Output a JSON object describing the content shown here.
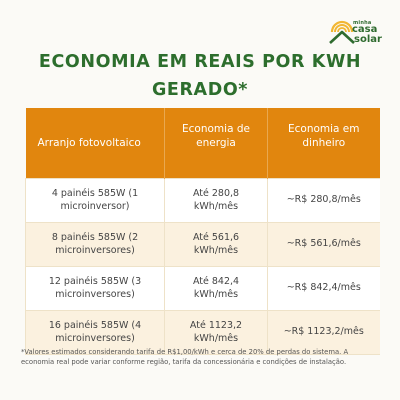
{
  "logo": {
    "line1": "minha",
    "line2": "casa",
    "line3": "solar",
    "icon": "sun-house-icon",
    "color_green": "#2f6b2f",
    "color_orange": "#e1860e"
  },
  "title": {
    "line1": "ECONOMIA EM REAIS POR KWH",
    "line2": "GERADO*"
  },
  "table": {
    "headers": {
      "arrangement": "Arranjo fotovoltaico",
      "energy_savings": "Economia de energia",
      "money_savings": "Economia em dinheiro"
    },
    "rows": [
      {
        "arrangement": "4 painéis 585W (1 microinversor)",
        "energy": "Até 280,8 kWh/mês",
        "money": "~R$ 280,8/mês"
      },
      {
        "arrangement": "8 painéis 585W (2 microinversores)",
        "energy": "Até 561,6 kWh/mês",
        "money": "~R$ 561,6/mês"
      },
      {
        "arrangement": "12 painéis 585W (3 microinversores)",
        "energy": "Até 842,4 kWh/mês",
        "money": "~R$ 842,4/mês"
      },
      {
        "arrangement": "16 painéis 585W (4 microinversores)",
        "energy": "Até 1123,2 kWh/mês",
        "money": "~R$ 1123,2/mês"
      }
    ]
  },
  "footnote": "*Valores estimados considerando tarifa de R$1,00/kWh e cerca de 20% de perdas do sistema. A economia real pode variar conforme região, tarifa da concessionária e condições de instalação."
}
